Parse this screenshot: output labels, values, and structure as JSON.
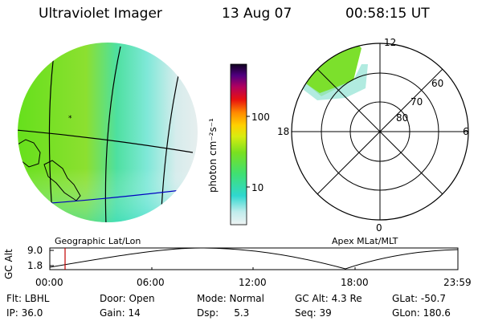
{
  "header": {
    "title": "Ultraviolet Imager",
    "date": "13 Aug 07",
    "time": "00:58:15 UT"
  },
  "colorbar": {
    "label": "photon cm⁻²s⁻¹",
    "ticks": [
      "100",
      "10"
    ]
  },
  "polar": {
    "mlt_labels": {
      "top": "12",
      "left": "18",
      "right": "6",
      "bottom": "0"
    },
    "lat_labels": [
      "60",
      "70",
      "80"
    ]
  },
  "plot_titles": {
    "left": "Geographic Lat/Lon",
    "right": "Apex MLat/MLT"
  },
  "altitude_panel": {
    "ylabel": "GC Alt",
    "yticks": [
      "9.0",
      "1.8"
    ],
    "xticks": [
      "00:00",
      "06:00",
      "12:00",
      "18:00",
      "23:59"
    ]
  },
  "info": {
    "flt": "Flt: LBHL",
    "ip": "IP: 36.0",
    "door": "Door: Open",
    "gain": "Gain: 14",
    "mode": "Mode: Normal",
    "dsp": "Dsp:     5.3",
    "gcalt": "GC Alt: 4.3 Re",
    "seq": "Seq: 39",
    "glat": "GLat: -50.7",
    "glon": "GLon: 180.6"
  },
  "colors": {
    "accent_red": "#c00000",
    "coast_blue": "#0000c0"
  }
}
